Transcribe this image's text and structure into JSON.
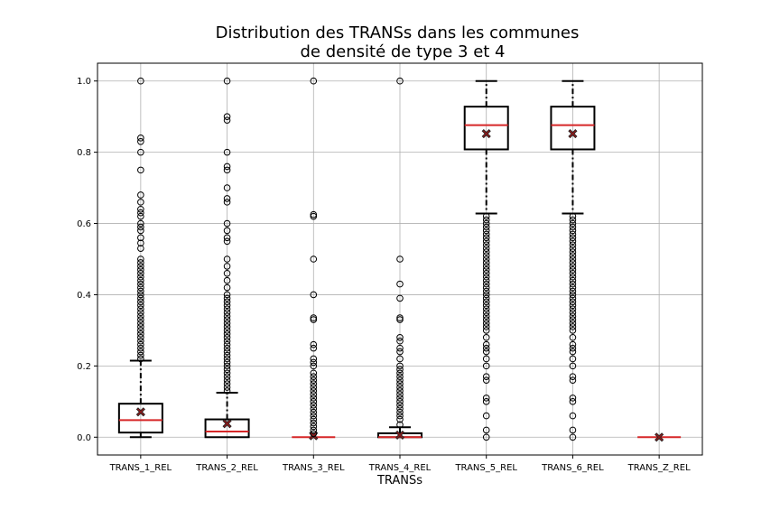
{
  "chart_data": {
    "type": "boxplot",
    "title_lines": [
      "Distribution des TRANSs dans les communes",
      "de densité de type 3 et 4"
    ],
    "xlabel": "TRANSs",
    "ylabel": "",
    "ylim": [
      -0.05,
      1.05
    ],
    "yticks": [
      0.0,
      0.2,
      0.4,
      0.6,
      0.8,
      1.0
    ],
    "ytick_labels": [
      "0.0",
      "0.2",
      "0.4",
      "0.6",
      "0.8",
      "1.0"
    ],
    "grid": true,
    "colors": {
      "box": "#000000",
      "median": "#d62728",
      "mean_marker": "#8b1a1a",
      "grid": "#b0b0b0"
    },
    "categories": [
      "TRANS_1_REL",
      "TRANS_2_REL",
      "TRANS_3_REL",
      "TRANS_4_REL",
      "TRANS_5_REL",
      "TRANS_6_REL",
      "TRANS_Z_REL"
    ],
    "boxes": [
      {
        "q1": 0.013,
        "median": 0.048,
        "q3": 0.094,
        "mean": 0.071,
        "whisker_low": 0.0,
        "whisker_high": 0.215,
        "outliers": [
          0.22,
          0.23,
          0.24,
          0.25,
          0.26,
          0.27,
          0.28,
          0.29,
          0.3,
          0.31,
          0.32,
          0.33,
          0.34,
          0.35,
          0.36,
          0.37,
          0.38,
          0.39,
          0.4,
          0.41,
          0.42,
          0.43,
          0.44,
          0.45,
          0.46,
          0.47,
          0.48,
          0.49,
          0.5,
          0.53,
          0.545,
          0.56,
          0.58,
          0.59,
          0.6,
          0.62,
          0.63,
          0.64,
          0.66,
          0.68,
          0.75,
          0.8,
          0.83,
          0.84,
          1.0
        ]
      },
      {
        "q1": 0.0,
        "median": 0.016,
        "q3": 0.05,
        "mean": 0.038,
        "whisker_low": 0.0,
        "whisker_high": 0.125,
        "outliers": [
          0.13,
          0.14,
          0.15,
          0.16,
          0.17,
          0.18,
          0.19,
          0.2,
          0.21,
          0.22,
          0.23,
          0.24,
          0.25,
          0.26,
          0.27,
          0.28,
          0.29,
          0.3,
          0.31,
          0.32,
          0.33,
          0.34,
          0.35,
          0.36,
          0.37,
          0.38,
          0.39,
          0.4,
          0.42,
          0.44,
          0.46,
          0.48,
          0.5,
          0.55,
          0.56,
          0.58,
          0.6,
          0.66,
          0.67,
          0.7,
          0.75,
          0.76,
          0.8,
          0.89,
          0.9,
          1.0
        ]
      },
      {
        "q1": 0.0,
        "median": 0.0,
        "q3": 0.0,
        "mean": 0.004,
        "whisker_low": 0.0,
        "whisker_high": 0.0,
        "outliers": [
          0.01,
          0.02,
          0.03,
          0.04,
          0.05,
          0.06,
          0.07,
          0.08,
          0.09,
          0.1,
          0.11,
          0.12,
          0.13,
          0.14,
          0.15,
          0.16,
          0.17,
          0.18,
          0.2,
          0.21,
          0.22,
          0.25,
          0.26,
          0.33,
          0.335,
          0.4,
          0.5,
          0.62,
          0.625,
          1.0
        ]
      },
      {
        "q1": 0.0,
        "median": 0.0,
        "q3": 0.011,
        "mean": 0.006,
        "whisker_low": 0.0,
        "whisker_high": 0.028,
        "outliers": [
          0.035,
          0.05,
          0.06,
          0.07,
          0.08,
          0.09,
          0.1,
          0.11,
          0.12,
          0.13,
          0.14,
          0.15,
          0.16,
          0.17,
          0.18,
          0.19,
          0.2,
          0.22,
          0.24,
          0.25,
          0.27,
          0.28,
          0.33,
          0.335,
          0.39,
          0.43,
          0.5,
          1.0
        ]
      },
      {
        "q1": 0.808,
        "median": 0.876,
        "q3": 0.928,
        "mean": 0.852,
        "whisker_low": 0.628,
        "whisker_high": 1.0,
        "outliers": [
          0.0,
          0.02,
          0.06,
          0.1,
          0.11,
          0.16,
          0.17,
          0.2,
          0.22,
          0.24,
          0.25,
          0.26,
          0.28,
          0.3,
          0.31,
          0.32,
          0.33,
          0.34,
          0.35,
          0.36,
          0.37,
          0.38,
          0.39,
          0.4,
          0.41,
          0.42,
          0.43,
          0.44,
          0.45,
          0.46,
          0.47,
          0.48,
          0.49,
          0.5,
          0.51,
          0.52,
          0.53,
          0.54,
          0.55,
          0.56,
          0.57,
          0.58,
          0.59,
          0.6,
          0.61,
          0.62
        ]
      },
      {
        "q1": 0.808,
        "median": 0.876,
        "q3": 0.928,
        "mean": 0.852,
        "whisker_low": 0.628,
        "whisker_high": 1.0,
        "outliers": [
          0.0,
          0.02,
          0.06,
          0.1,
          0.11,
          0.16,
          0.17,
          0.2,
          0.22,
          0.24,
          0.25,
          0.26,
          0.28,
          0.3,
          0.31,
          0.32,
          0.33,
          0.34,
          0.35,
          0.36,
          0.37,
          0.38,
          0.39,
          0.4,
          0.41,
          0.42,
          0.43,
          0.44,
          0.45,
          0.46,
          0.47,
          0.48,
          0.49,
          0.5,
          0.51,
          0.52,
          0.53,
          0.54,
          0.55,
          0.56,
          0.57,
          0.58,
          0.59,
          0.6,
          0.61,
          0.62
        ]
      },
      {
        "q1": 0.0,
        "median": 0.0,
        "q3": 0.0,
        "mean": 0.0,
        "whisker_low": 0.0,
        "whisker_high": 0.0,
        "outliers": []
      }
    ]
  }
}
